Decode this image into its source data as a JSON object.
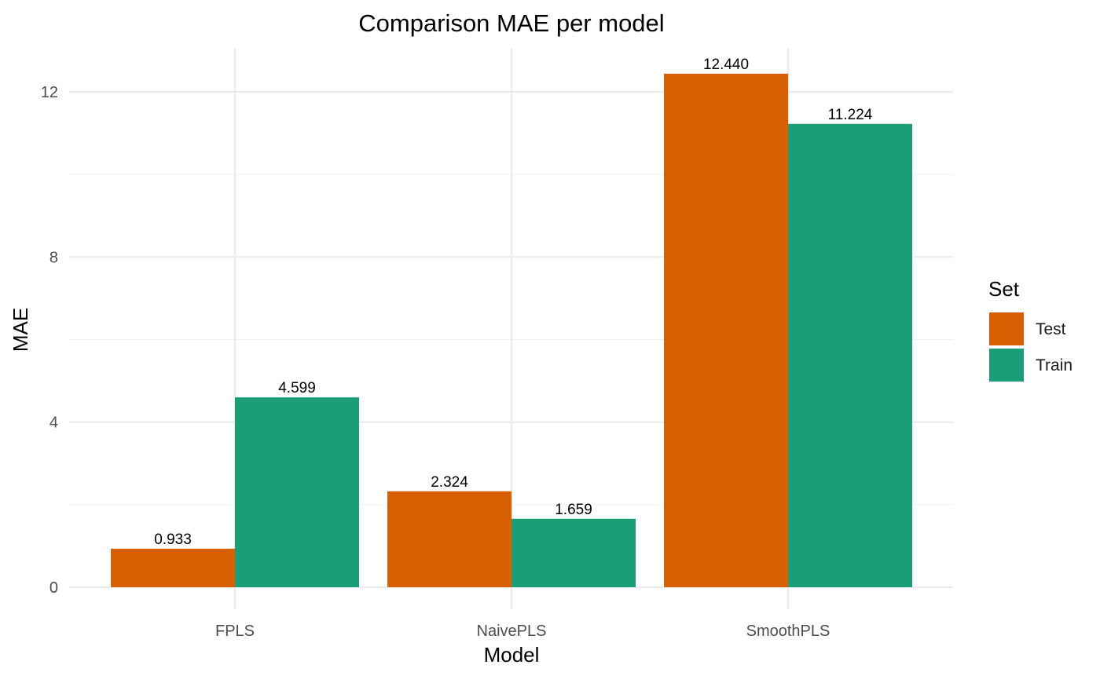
{
  "chart_data": {
    "type": "bar",
    "title": "Comparison MAE per model",
    "xlabel": "Model",
    "ylabel": "MAE",
    "categories": [
      "FPLS",
      "NaivePLS",
      "SmoothPLS"
    ],
    "series": [
      {
        "name": "Test",
        "color": "#d95f02",
        "values": [
          0.933,
          2.324,
          12.44
        ],
        "labels": [
          "0.933",
          "2.324",
          "12.440"
        ]
      },
      {
        "name": "Train",
        "color": "#1b9e77",
        "values": [
          4.599,
          1.659,
          11.224
        ],
        "labels": [
          "4.599",
          "1.659",
          "11.224"
        ]
      }
    ],
    "ylim": [
      0,
      13.1
    ],
    "yticks": [
      0,
      4,
      8,
      12
    ],
    "ytick_labels": [
      "0",
      "4",
      "8",
      "12"
    ],
    "grid": true,
    "legend": {
      "title": "Set",
      "position": "right"
    }
  }
}
